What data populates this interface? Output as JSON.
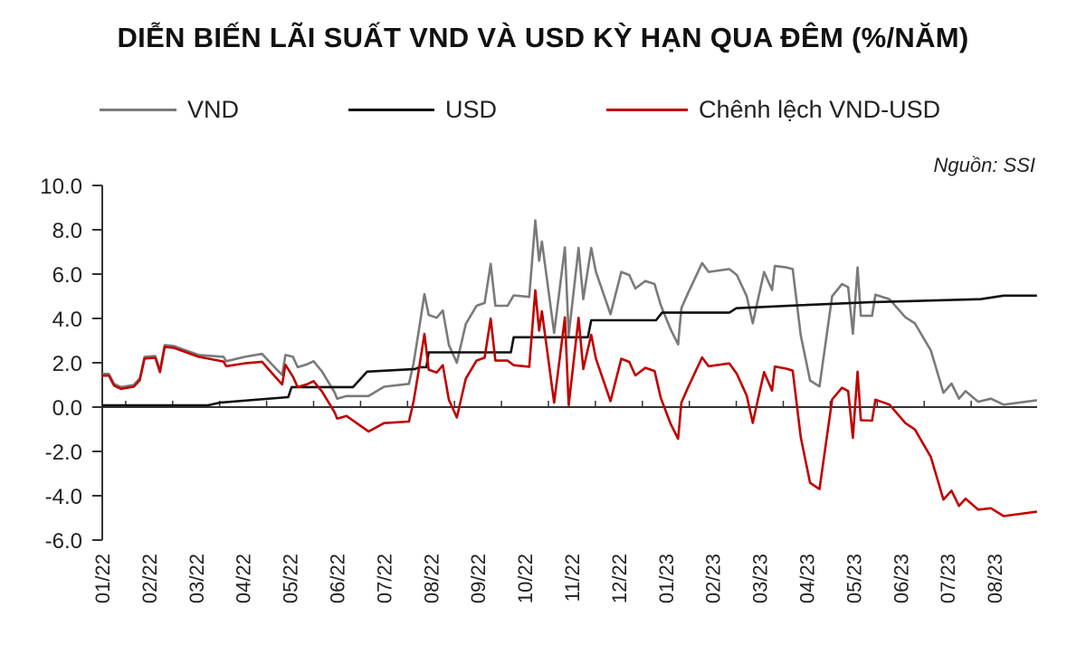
{
  "chart_data": {
    "type": "line",
    "title": "DIỄN BIẾN LÃI SUẤT VND VÀ USD KỲ HẠN QUA ĐÊM (%/NĂM)",
    "source": "Nguồn: SSI",
    "xlabel": "",
    "ylabel": "",
    "ylim": [
      -6,
      10
    ],
    "yticks": [
      "10.0",
      "8.0",
      "6.0",
      "4.0",
      "2.0",
      "0.0",
      "-2.0",
      "-4.0",
      "-6.0"
    ],
    "ytick_values": [
      10,
      8,
      6,
      4,
      2,
      0,
      -2,
      -4,
      -6
    ],
    "categories": [
      "01/22",
      "02/22",
      "03/22",
      "04/22",
      "05/22",
      "06/22",
      "07/22",
      "08/22",
      "09/22",
      "10/22",
      "11/22",
      "12/22",
      "01/23",
      "02/23",
      "03/23",
      "04/23",
      "05/23",
      "06/23",
      "07/23",
      "08/23"
    ],
    "x_unit": "months since 01/22",
    "xlim": [
      0,
      19.9
    ],
    "legend_position": "top",
    "series": [
      {
        "name": "VND",
        "color": "#7a7a7a",
        "points": [
          [
            0,
            1.5
          ],
          [
            0.14,
            1.5
          ],
          [
            0.25,
            1.05
          ],
          [
            0.4,
            0.9
          ],
          [
            0.67,
            1.0
          ],
          [
            0.8,
            1.3
          ],
          [
            0.9,
            2.27
          ],
          [
            1.13,
            2.3
          ],
          [
            1.23,
            1.66
          ],
          [
            1.33,
            2.8
          ],
          [
            1.53,
            2.75
          ],
          [
            2.05,
            2.35
          ],
          [
            2.58,
            2.27
          ],
          [
            2.64,
            2.07
          ],
          [
            3.04,
            2.27
          ],
          [
            3.4,
            2.4
          ],
          [
            3.7,
            1.73
          ],
          [
            3.83,
            1.45
          ],
          [
            3.9,
            2.35
          ],
          [
            4.06,
            2.27
          ],
          [
            4.16,
            1.8
          ],
          [
            4.36,
            1.93
          ],
          [
            4.5,
            2.07
          ],
          [
            4.68,
            1.6
          ],
          [
            4.95,
            0.65
          ],
          [
            5.0,
            0.38
          ],
          [
            5.2,
            0.5
          ],
          [
            5.67,
            0.5
          ],
          [
            6.0,
            0.92
          ],
          [
            6.53,
            1.05
          ],
          [
            6.63,
            2.0
          ],
          [
            6.72,
            3.2
          ],
          [
            6.86,
            5.1
          ],
          [
            6.95,
            4.16
          ],
          [
            7.12,
            4.03
          ],
          [
            7.25,
            4.36
          ],
          [
            7.38,
            2.8
          ],
          [
            7.55,
            2.0
          ],
          [
            7.74,
            3.75
          ],
          [
            7.97,
            4.57
          ],
          [
            8.14,
            4.7
          ],
          [
            8.27,
            6.46
          ],
          [
            8.37,
            4.57
          ],
          [
            8.63,
            4.57
          ],
          [
            8.76,
            5.04
          ],
          [
            9.09,
            4.97
          ],
          [
            9.22,
            8.42
          ],
          [
            9.3,
            6.6
          ],
          [
            9.36,
            7.47
          ],
          [
            9.62,
            3.35
          ],
          [
            9.85,
            7.2
          ],
          [
            9.93,
            3.24
          ],
          [
            10.14,
            7.18
          ],
          [
            10.24,
            4.87
          ],
          [
            10.41,
            7.18
          ],
          [
            10.51,
            6.1
          ],
          [
            10.82,
            4.19
          ],
          [
            11.05,
            6.1
          ],
          [
            11.22,
            5.96
          ],
          [
            11.35,
            5.35
          ],
          [
            11.56,
            5.69
          ],
          [
            11.76,
            5.55
          ],
          [
            11.89,
            4.6
          ],
          [
            12.1,
            3.51
          ],
          [
            12.26,
            2.83
          ],
          [
            12.33,
            4.46
          ],
          [
            12.47,
            5.14
          ],
          [
            12.77,
            6.5
          ],
          [
            12.91,
            6.1
          ],
          [
            13.35,
            6.23
          ],
          [
            13.51,
            5.96
          ],
          [
            13.72,
            5.0
          ],
          [
            13.85,
            3.78
          ],
          [
            13.92,
            4.46
          ],
          [
            14.09,
            6.1
          ],
          [
            14.26,
            5.28
          ],
          [
            14.32,
            6.37
          ],
          [
            14.56,
            6.3
          ],
          [
            14.7,
            6.23
          ],
          [
            14.87,
            3.24
          ],
          [
            15.07,
            1.2
          ],
          [
            15.27,
            0.93
          ],
          [
            15.54,
            5.0
          ],
          [
            15.75,
            5.55
          ],
          [
            15.88,
            5.41
          ],
          [
            15.98,
            3.31
          ],
          [
            16.08,
            6.3
          ],
          [
            16.15,
            4.12
          ],
          [
            16.39,
            4.12
          ],
          [
            16.46,
            5.07
          ],
          [
            16.76,
            4.87
          ],
          [
            17.1,
            4.05
          ],
          [
            17.3,
            3.78
          ],
          [
            17.64,
            2.56
          ],
          [
            17.91,
            0.65
          ],
          [
            18.08,
            1.06
          ],
          [
            18.24,
            0.38
          ],
          [
            18.38,
            0.72
          ],
          [
            18.65,
            0.24
          ],
          [
            18.92,
            0.38
          ],
          [
            19.19,
            0.11
          ],
          [
            19.9,
            0.31
          ]
        ]
      },
      {
        "name": "USD",
        "color": "#111111",
        "points": [
          [
            0,
            0.08
          ],
          [
            2.25,
            0.08
          ],
          [
            2.5,
            0.2
          ],
          [
            3.96,
            0.45
          ],
          [
            4.03,
            0.9
          ],
          [
            5.34,
            0.9
          ],
          [
            5.64,
            1.6
          ],
          [
            6.66,
            1.72
          ],
          [
            6.75,
            1.8
          ],
          [
            6.9,
            1.8
          ],
          [
            6.95,
            2.47
          ],
          [
            8.7,
            2.47
          ],
          [
            8.76,
            3.15
          ],
          [
            10.34,
            3.15
          ],
          [
            10.41,
            3.92
          ],
          [
            11.79,
            3.92
          ],
          [
            11.92,
            4.26
          ],
          [
            13.35,
            4.26
          ],
          [
            13.5,
            4.46
          ],
          [
            14.9,
            4.6
          ],
          [
            16.35,
            4.73
          ],
          [
            18.7,
            4.87
          ],
          [
            19.19,
            5.03
          ],
          [
            19.9,
            5.03
          ]
        ]
      },
      {
        "name": "Chênh lệch VND-USD",
        "color": "#c00000",
        "derived": "VND - USD"
      }
    ]
  }
}
